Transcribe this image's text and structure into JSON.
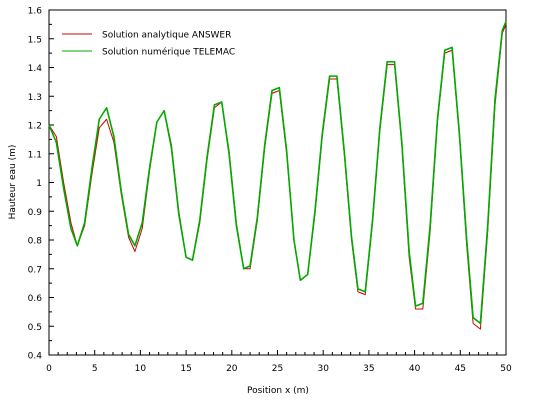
{
  "chart_data": {
    "type": "line",
    "title": "",
    "xlabel": "Position x (m)",
    "ylabel": "Hauteur eau (m)",
    "xlim": [
      0,
      50
    ],
    "ylim": [
      0.4,
      1.6
    ],
    "x_ticks": [
      0,
      5,
      10,
      15,
      20,
      25,
      30,
      35,
      40,
      45,
      50
    ],
    "y_ticks": [
      0.4,
      0.5,
      0.6,
      0.7,
      0.8,
      0.9,
      1.0,
      1.1,
      1.2,
      1.3,
      1.4,
      1.5,
      1.6
    ],
    "x_tick_labels": [
      "0",
      "5",
      "10",
      "15",
      "20",
      "25",
      "30",
      "35",
      "40",
      "45",
      "50"
    ],
    "y_tick_labels": [
      "0.4",
      "0.5",
      "0.6",
      "0.7",
      "0.8",
      "0.9",
      "1",
      "1.1",
      "1.2",
      "1.3",
      "1.4",
      "1.5",
      "1.6"
    ],
    "grid": false,
    "legend_position": "top-left",
    "series": [
      {
        "name": "Solution analytique ANSWER",
        "color": "#d00000",
        "x": [
          0,
          0.8,
          1.6,
          2.4,
          3.1,
          3.9,
          4.7,
          5.5,
          6.3,
          7.1,
          7.9,
          8.7,
          9.4,
          10.2,
          11.0,
          11.8,
          12.6,
          13.4,
          14.2,
          15.0,
          15.7,
          16.5,
          17.3,
          18.1,
          18.9,
          19.7,
          20.5,
          21.3,
          22.0,
          22.8,
          23.6,
          24.4,
          25.2,
          26.0,
          26.8,
          27.5,
          28.3,
          29.1,
          29.9,
          30.7,
          31.5,
          32.3,
          33.1,
          33.8,
          34.6,
          35.4,
          36.2,
          37.0,
          37.8,
          38.6,
          39.4,
          40.1,
          40.9,
          41.7,
          42.5,
          43.3,
          44.1,
          44.9,
          45.7,
          46.4,
          47.2,
          48.0,
          48.8,
          49.6,
          50.0
        ],
        "y": [
          1.2,
          1.16,
          1.0,
          0.86,
          0.78,
          0.85,
          1.03,
          1.19,
          1.22,
          1.14,
          0.96,
          0.81,
          0.76,
          0.84,
          1.04,
          1.21,
          1.25,
          1.13,
          0.9,
          0.74,
          0.73,
          0.86,
          1.08,
          1.26,
          1.28,
          1.11,
          0.86,
          0.7,
          0.7,
          0.87,
          1.12,
          1.31,
          1.32,
          1.1,
          0.8,
          0.66,
          0.68,
          0.89,
          1.16,
          1.36,
          1.36,
          1.1,
          0.8,
          0.62,
          0.61,
          0.86,
          1.18,
          1.41,
          1.41,
          1.13,
          0.74,
          0.56,
          0.56,
          0.83,
          1.21,
          1.45,
          1.46,
          1.16,
          0.78,
          0.51,
          0.49,
          0.83,
          1.27,
          1.52,
          1.55
        ]
      },
      {
        "name": "Solution numérique TELEMAC",
        "color": "#00aa00",
        "x": [
          0,
          0.8,
          1.6,
          2.4,
          3.1,
          3.9,
          4.7,
          5.5,
          6.3,
          7.1,
          7.9,
          8.7,
          9.4,
          10.2,
          11.0,
          11.8,
          12.6,
          13.4,
          14.2,
          15.0,
          15.7,
          16.5,
          17.3,
          18.1,
          18.9,
          19.7,
          20.5,
          21.3,
          22.0,
          22.8,
          23.6,
          24.4,
          25.2,
          26.0,
          26.8,
          27.5,
          28.3,
          29.1,
          29.9,
          30.7,
          31.5,
          32.3,
          33.1,
          33.8,
          34.6,
          35.4,
          36.2,
          37.0,
          37.8,
          38.6,
          39.4,
          40.1,
          40.9,
          41.7,
          42.5,
          43.3,
          44.1,
          44.9,
          45.7,
          46.4,
          47.2,
          48.0,
          48.8,
          49.6,
          50.0
        ],
        "y": [
          1.2,
          1.14,
          0.98,
          0.84,
          0.78,
          0.86,
          1.05,
          1.22,
          1.26,
          1.16,
          0.97,
          0.82,
          0.78,
          0.86,
          1.05,
          1.21,
          1.25,
          1.12,
          0.89,
          0.74,
          0.73,
          0.87,
          1.09,
          1.27,
          1.28,
          1.1,
          0.85,
          0.7,
          0.71,
          0.88,
          1.13,
          1.32,
          1.33,
          1.11,
          0.8,
          0.66,
          0.68,
          0.9,
          1.17,
          1.37,
          1.37,
          1.11,
          0.81,
          0.63,
          0.62,
          0.87,
          1.19,
          1.42,
          1.42,
          1.14,
          0.76,
          0.57,
          0.58,
          0.85,
          1.22,
          1.46,
          1.47,
          1.17,
          0.8,
          0.53,
          0.51,
          0.85,
          1.29,
          1.53,
          1.56
        ]
      }
    ]
  }
}
